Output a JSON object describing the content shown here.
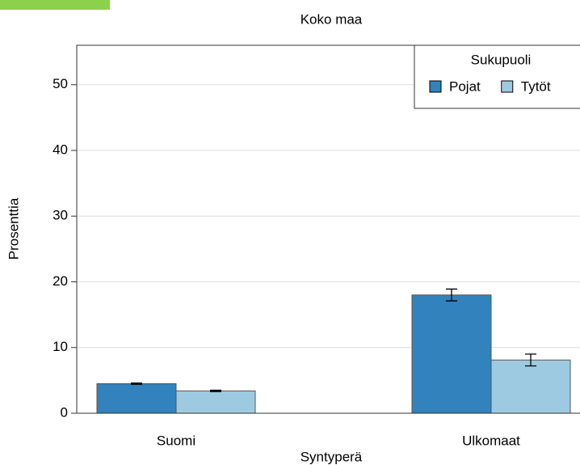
{
  "chart_data": {
    "type": "bar",
    "title": "Koko maa",
    "x_label": "Syntyperä",
    "y_label": "Prosenttia",
    "categories": [
      "Suomi",
      "Ulkomaat"
    ],
    "series": [
      {
        "name": "Pojat",
        "color": "#3182bd",
        "values": [
          4.5,
          18.0
        ],
        "errors": [
          0.1,
          0.9
        ]
      },
      {
        "name": "Tytöt",
        "color": "#9ecae1",
        "values": [
          3.4,
          8.1
        ],
        "errors": [
          0.1,
          0.9
        ]
      }
    ],
    "ylim": [
      0,
      56
    ],
    "yticks": [
      0,
      10,
      20,
      30,
      40,
      50
    ],
    "grid": true,
    "legend": {
      "title": "Sukupuoli",
      "position": "top-right"
    }
  }
}
